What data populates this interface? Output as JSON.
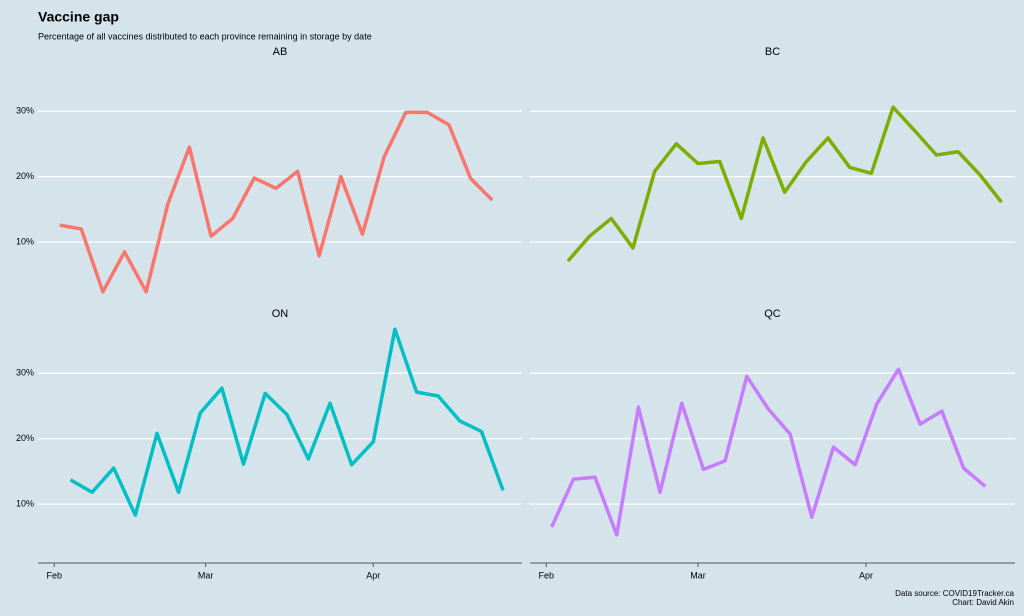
{
  "title": "Vaccine gap",
  "subtitle": "Percentage of all vaccines distributed to each province remaining in storage by date",
  "source": "Data source: COVID19Tracker.ca",
  "credit": "Chart: David Akin",
  "chart_data": [
    {
      "type": "line",
      "title": "AB",
      "color": "#f8766d",
      "grid": true,
      "x": [
        33,
        37,
        41,
        45,
        49,
        53,
        57,
        61,
        65,
        69,
        73,
        77,
        81,
        85,
        89,
        93,
        97,
        101,
        105,
        109,
        113
      ],
      "values": [
        12.6,
        12.0,
        2.4,
        8.5,
        2.4,
        15.8,
        24.5,
        10.9,
        13.6,
        19.8,
        18.2,
        20.8,
        7.9,
        20.0,
        11.2,
        23.0,
        29.8,
        29.8,
        27.9,
        19.7,
        16.4
      ],
      "xlim": [
        29,
        118.5
      ],
      "ylim": [
        1,
        37.5
      ],
      "yticks": [
        {
          "value": 10,
          "label": "10%"
        },
        {
          "value": 20,
          "label": "20%"
        },
        {
          "value": 30,
          "label": "30%"
        }
      ]
    },
    {
      "type": "line",
      "title": "BC",
      "color": "#7cae00",
      "grid": true,
      "x": [
        36,
        40,
        44,
        48,
        52,
        56,
        60,
        64,
        68,
        72,
        76,
        80,
        84,
        88,
        92,
        96,
        100,
        104,
        108,
        112,
        116
      ],
      "values": [
        7.1,
        10.9,
        13.6,
        9.1,
        20.8,
        25.0,
        22.0,
        22.3,
        13.6,
        25.9,
        17.6,
        22.3,
        25.9,
        21.4,
        20.5,
        30.6,
        27.0,
        23.3,
        23.8,
        20.3,
        16.1
      ],
      "xlim": [
        29,
        118.5
      ],
      "ylim": [
        1,
        37.5
      ],
      "yticks": [
        10,
        20,
        30
      ]
    },
    {
      "type": "line",
      "title": "ON",
      "color": "#00bfc4",
      "grid": true,
      "x": [
        35,
        39,
        43,
        47,
        51,
        55,
        59,
        63,
        67,
        71,
        75,
        79,
        83,
        87,
        91,
        95,
        99,
        103,
        107,
        111,
        115
      ],
      "values": [
        13.7,
        11.8,
        15.5,
        8.3,
        20.8,
        11.8,
        23.9,
        27.7,
        16.1,
        26.9,
        23.7,
        16.9,
        25.4,
        16.0,
        19.5,
        36.7,
        27.1,
        26.5,
        22.7,
        21.1,
        12.1
      ],
      "xlim": [
        29,
        118.5
      ],
      "ylim": [
        1,
        37.5
      ],
      "xticks": [
        {
          "value": 32,
          "label": "Feb"
        },
        {
          "value": 60,
          "label": "Mar"
        },
        {
          "value": 91,
          "label": "Apr"
        }
      ],
      "yticks": [
        {
          "value": 10,
          "label": "10%"
        },
        {
          "value": 20,
          "label": "20%"
        },
        {
          "value": 30,
          "label": "30%"
        }
      ]
    },
    {
      "type": "line",
      "title": "QC",
      "color": "#c77cff",
      "grid": true,
      "x": [
        33,
        37,
        41,
        45,
        49,
        53,
        57,
        61,
        65,
        69,
        73,
        77,
        81,
        85,
        89,
        93,
        97,
        101,
        105,
        109,
        113
      ],
      "values": [
        6.5,
        13.8,
        14.1,
        5.3,
        24.8,
        11.8,
        25.4,
        15.3,
        16.6,
        29.5,
        24.5,
        20.7,
        8.0,
        18.7,
        16.0,
        25.3,
        30.6,
        22.2,
        24.2,
        15.5,
        12.7
      ],
      "xlim": [
        29,
        118.5
      ],
      "ylim": [
        1,
        37.5
      ],
      "xticks": [
        {
          "value": 32,
          "label": "Feb"
        },
        {
          "value": 60,
          "label": "Mar"
        },
        {
          "value": 91,
          "label": "Apr"
        }
      ],
      "yticks": [
        10,
        20,
        30
      ]
    }
  ]
}
